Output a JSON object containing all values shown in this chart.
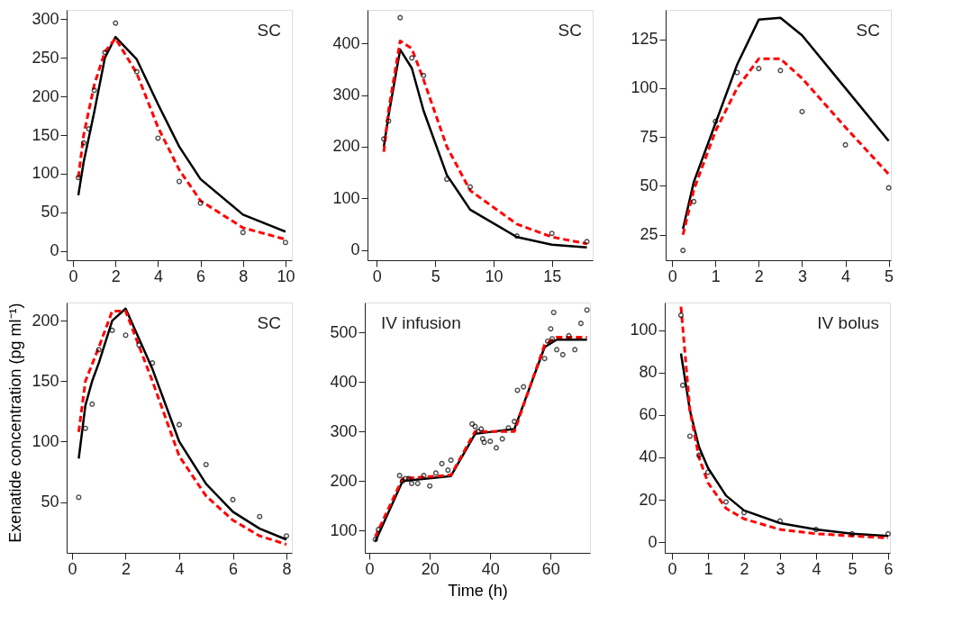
{
  "chart_data": [
    {
      "type": "line",
      "annotations": [
        "SC"
      ],
      "xlim": [
        -0.3,
        10.3
      ],
      "xticks": [
        0,
        2,
        4,
        6,
        8,
        10
      ],
      "ylim": [
        -12,
        312
      ],
      "yticks": [
        0,
        50,
        100,
        150,
        200,
        250,
        300
      ],
      "grid": false,
      "series": [
        {
          "type": "scatter",
          "marker": "circle",
          "color": "#000000",
          "x": [
            0.25,
            0.5,
            0.75,
            1,
            1.5,
            2,
            3,
            4,
            5,
            6,
            8,
            10
          ],
          "values": [
            95,
            140,
            158,
            208,
            257,
            295,
            232,
            146,
            90,
            62,
            24,
            11
          ]
        },
        {
          "type": "line",
          "line_style": "solid",
          "color": "#000000",
          "x": [
            0.25,
            0.5,
            1,
            1.5,
            2,
            3,
            4,
            5,
            6,
            8,
            10
          ],
          "values": [
            72,
            115,
            180,
            250,
            277,
            248,
            190,
            135,
            93,
            47,
            25
          ]
        },
        {
          "type": "line",
          "line_style": "dashed",
          "color": "#ff0000",
          "x": [
            0.25,
            0.5,
            1,
            1.5,
            2,
            3,
            4,
            5,
            6,
            8,
            10
          ],
          "values": [
            95,
            150,
            215,
            258,
            275,
            230,
            160,
            105,
            65,
            30,
            15
          ]
        }
      ]
    },
    {
      "type": "line",
      "annotations": [
        "SC"
      ],
      "xlim": [
        -0.8,
        18.5
      ],
      "xticks": [
        0,
        5,
        10,
        15
      ],
      "ylim": [
        -20,
        465
      ],
      "yticks": [
        0,
        100,
        200,
        300,
        400
      ],
      "grid": false,
      "series": [
        {
          "type": "scatter",
          "marker": "circle",
          "color": "#000000",
          "x": [
            0.6,
            1,
            2,
            3,
            4,
            6,
            8,
            12,
            15,
            18
          ],
          "values": [
            215,
            250,
            450,
            372,
            338,
            137,
            122,
            27,
            32,
            16
          ]
        },
        {
          "type": "line",
          "line_style": "solid",
          "color": "#000000",
          "x": [
            0.6,
            1,
            2,
            3,
            4,
            6,
            8,
            12,
            15,
            18
          ],
          "values": [
            200,
            260,
            388,
            352,
            270,
            145,
            78,
            25,
            10,
            5
          ]
        },
        {
          "type": "line",
          "line_style": "dashed",
          "color": "#ff0000",
          "x": [
            0.6,
            1,
            2,
            3,
            4,
            6,
            8,
            12,
            15,
            18
          ],
          "values": [
            190,
            270,
            405,
            390,
            330,
            200,
            115,
            50,
            25,
            12
          ]
        }
      ]
    },
    {
      "type": "line",
      "annotations": [
        "SC"
      ],
      "xlim": [
        -0.15,
        5.05
      ],
      "xticks": [
        0,
        1,
        2,
        3,
        4,
        5
      ],
      "ylim": [
        12,
        140
      ],
      "yticks": [
        25,
        50,
        75,
        100,
        125
      ],
      "grid": false,
      "series": [
        {
          "type": "scatter",
          "marker": "circle",
          "color": "#000000",
          "x": [
            0.25,
            0.5,
            1,
            1.5,
            2,
            2.5,
            3,
            4,
            5
          ],
          "values": [
            17,
            42,
            83,
            108,
            110,
            109,
            88,
            71,
            49
          ]
        },
        {
          "type": "line",
          "line_style": "solid",
          "color": "#000000",
          "x": [
            0.25,
            0.5,
            1,
            1.5,
            2,
            2.5,
            3,
            4,
            5
          ],
          "values": [
            28,
            52,
            82,
            112,
            135,
            136,
            127,
            100,
            73
          ]
        },
        {
          "type": "line",
          "line_style": "dashed",
          "color": "#ff0000",
          "x": [
            0.25,
            0.5,
            1,
            1.5,
            2,
            2.5,
            3,
            4,
            5
          ],
          "values": [
            25,
            48,
            78,
            100,
            115,
            115,
            105,
            80,
            56
          ]
        }
      ]
    },
    {
      "type": "line",
      "annotations": [
        "SC"
      ],
      "ylabel": "Exenatide concentration (pg ml⁻¹)",
      "xlim": [
        -0.2,
        8.2
      ],
      "xticks": [
        0,
        2,
        4,
        6,
        8
      ],
      "ylim": [
        8,
        215
      ],
      "yticks": [
        50,
        100,
        150,
        200
      ],
      "grid": false,
      "series": [
        {
          "type": "scatter",
          "marker": "circle",
          "color": "#000000",
          "x": [
            0.25,
            0.5,
            0.75,
            1,
            1.5,
            2,
            2.5,
            3,
            4,
            5,
            6,
            7,
            8
          ],
          "values": [
            54,
            111,
            131,
            176,
            192,
            188,
            180,
            165,
            114,
            81,
            52,
            38,
            22
          ]
        },
        {
          "type": "line",
          "line_style": "solid",
          "color": "#000000",
          "x": [
            0.25,
            0.5,
            0.75,
            1,
            1.5,
            2,
            3,
            4,
            5,
            6,
            7,
            8
          ],
          "values": [
            86,
            130,
            150,
            165,
            200,
            210,
            160,
            100,
            65,
            42,
            28,
            19
          ]
        },
        {
          "type": "line",
          "line_style": "dashed",
          "color": "#ff0000",
          "x": [
            0.25,
            0.5,
            1,
            1.5,
            2,
            3,
            4,
            5,
            6,
            7,
            8
          ],
          "values": [
            108,
            150,
            178,
            208,
            208,
            150,
            88,
            55,
            35,
            22,
            15
          ]
        }
      ]
    },
    {
      "type": "line",
      "annotations": [
        "IV infusion"
      ],
      "xlabel": "Time (h)",
      "xlim": [
        -1.5,
        73
      ],
      "xticks": [
        0,
        20,
        40,
        60
      ],
      "ylim": [
        55,
        560
      ],
      "yticks": [
        100,
        200,
        300,
        400,
        500
      ],
      "grid": false,
      "series": [
        {
          "type": "scatter",
          "marker": "circle",
          "color": "#000000",
          "x": [
            2,
            3,
            10,
            11,
            12,
            13,
            14,
            16,
            18,
            20,
            22,
            24,
            26,
            27,
            34,
            35,
            36,
            37,
            37.5,
            38,
            40,
            42,
            44,
            46,
            48,
            49,
            51,
            58,
            59,
            60,
            60.5,
            61,
            62,
            64,
            66,
            68,
            70,
            72
          ],
          "values": [
            82,
            102,
            211,
            200,
            205,
            205,
            195,
            195,
            211,
            190,
            216,
            235,
            222,
            242,
            315,
            310,
            300,
            305,
            285,
            278,
            280,
            267,
            285,
            307,
            320,
            383,
            390,
            447,
            482,
            507,
            487,
            540,
            465,
            455,
            493,
            465,
            518,
            545
          ]
        },
        {
          "type": "line",
          "line_style": "solid",
          "color": "#000000",
          "x": [
            2,
            11,
            27,
            35,
            48,
            58,
            62,
            72
          ],
          "values": [
            78,
            200,
            210,
            295,
            305,
            470,
            485,
            485
          ]
        },
        {
          "type": "line",
          "line_style": "dashed",
          "color": "#ff0000",
          "x": [
            2,
            11,
            27,
            35,
            48,
            58,
            62,
            72
          ],
          "values": [
            88,
            205,
            212,
            300,
            300,
            475,
            490,
            490
          ]
        }
      ]
    },
    {
      "type": "line",
      "annotations": [
        "IV bolus"
      ],
      "xlim": [
        -0.2,
        6.05
      ],
      "xticks": [
        0,
        1,
        2,
        3,
        4,
        5,
        6
      ],
      "ylim": [
        -5,
        113
      ],
      "yticks": [
        0,
        20,
        40,
        60,
        80,
        100
      ],
      "grid": false,
      "series": [
        {
          "type": "scatter",
          "marker": "circle",
          "color": "#000000",
          "x": [
            0.25,
            0.3,
            0.5,
            0.75,
            1,
            1.5,
            2,
            3,
            4,
            5,
            6
          ],
          "values": [
            107,
            74,
            50,
            41,
            33,
            19,
            14,
            10,
            6,
            4,
            4
          ]
        },
        {
          "type": "line",
          "line_style": "solid",
          "color": "#000000",
          "x": [
            0.25,
            0.5,
            0.75,
            1,
            1.5,
            2,
            3,
            4,
            5,
            6
          ],
          "values": [
            89,
            62,
            45,
            35,
            22,
            15,
            9,
            6,
            4,
            3
          ]
        },
        {
          "type": "line",
          "line_style": "dashed",
          "color": "#ff0000",
          "x": [
            0.25,
            0.5,
            0.75,
            1,
            1.5,
            2,
            3,
            4,
            5,
            6
          ],
          "values": [
            111,
            62,
            40,
            28,
            16,
            11,
            6,
            4,
            3,
            2
          ]
        }
      ]
    }
  ]
}
